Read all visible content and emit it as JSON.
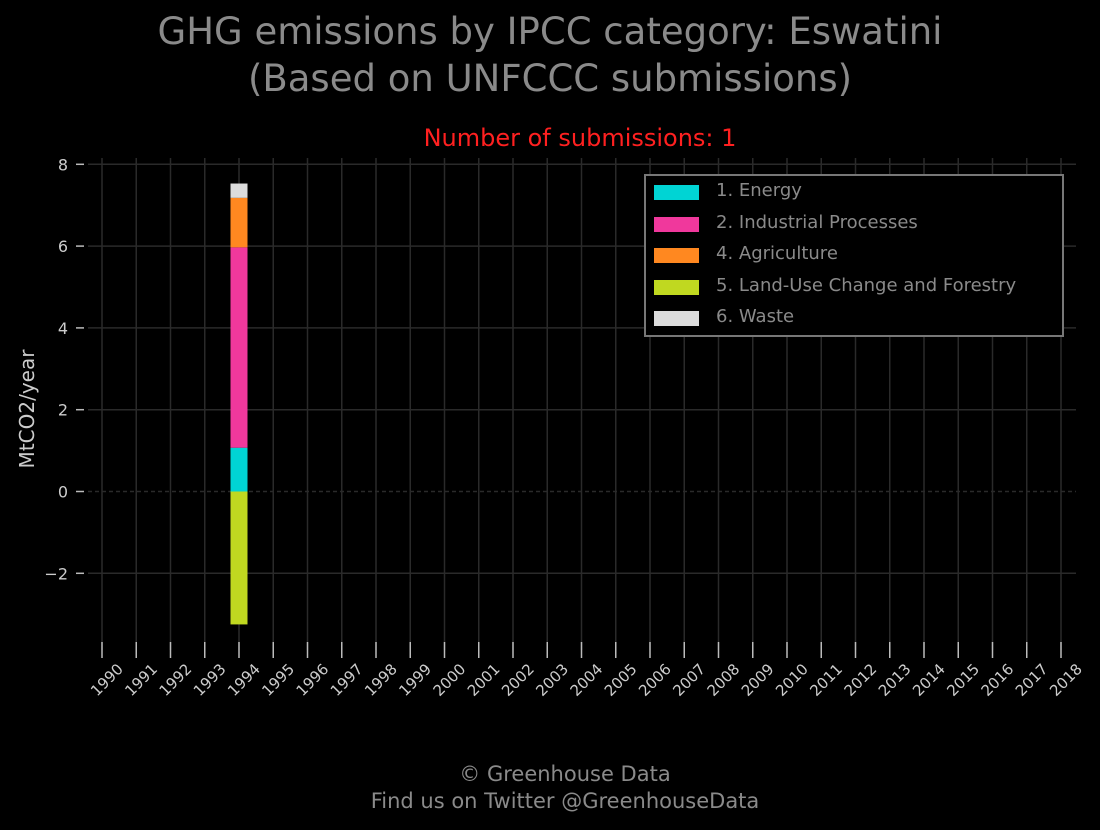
{
  "title_line1": "GHG emissions by IPCC category: Eswatini",
  "title_line2": "(Based on UNFCCC submissions)",
  "subtitle": "Number of submissions: 1",
  "footer_line1": "© Greenhouse Data",
  "footer_line2": "Find us on Twitter @GreenhouseData",
  "chart_data": {
    "type": "bar",
    "stacked": true,
    "ylabel": "MtCO2/year",
    "xlabel": "",
    "ylim": [
      -3.8,
      8.2
    ],
    "yticks": [
      8,
      6,
      4,
      2,
      0,
      -2
    ],
    "ytick_labels": [
      "8",
      "6",
      "4",
      "2",
      "0",
      "−2"
    ],
    "grid": true,
    "legend_position": "top-right",
    "categories": [
      "1990",
      "1991",
      "1992",
      "1993",
      "1994",
      "1995",
      "1996",
      "1997",
      "1998",
      "1999",
      "2000",
      "2001",
      "2002",
      "2003",
      "2004",
      "2005",
      "2006",
      "2007",
      "2008",
      "2009",
      "2010",
      "2011",
      "2012",
      "2013",
      "2014",
      "2015",
      "2016",
      "2017",
      "2018"
    ],
    "series": [
      {
        "name": "1. Energy",
        "color": "#00d4d4",
        "values": [
          null,
          null,
          null,
          null,
          1.07,
          null,
          null,
          null,
          null,
          null,
          null,
          null,
          null,
          null,
          null,
          null,
          null,
          null,
          null,
          null,
          null,
          null,
          null,
          null,
          null,
          null,
          null,
          null,
          null
        ]
      },
      {
        "name": "2. Industrial Processes",
        "color": "#f0389c",
        "values": [
          null,
          null,
          null,
          null,
          4.9,
          null,
          null,
          null,
          null,
          null,
          null,
          null,
          null,
          null,
          null,
          null,
          null,
          null,
          null,
          null,
          null,
          null,
          null,
          null,
          null,
          null,
          null,
          null,
          null
        ]
      },
      {
        "name": "4. Agriculture",
        "color": "#ff8820",
        "values": [
          null,
          null,
          null,
          null,
          1.21,
          null,
          null,
          null,
          null,
          null,
          null,
          null,
          null,
          null,
          null,
          null,
          null,
          null,
          null,
          null,
          null,
          null,
          null,
          null,
          null,
          null,
          null,
          null,
          null
        ]
      },
      {
        "name": "5. Land-Use Change and Forestry",
        "color": "#c0d820",
        "values": [
          null,
          null,
          null,
          null,
          -3.25,
          null,
          null,
          null,
          null,
          null,
          null,
          null,
          null,
          null,
          null,
          null,
          null,
          null,
          null,
          null,
          null,
          null,
          null,
          null,
          null,
          null,
          null,
          null,
          null
        ]
      },
      {
        "name": "6. Waste",
        "color": "#dcdcdc",
        "values": [
          null,
          null,
          null,
          null,
          0.35,
          null,
          null,
          null,
          null,
          null,
          null,
          null,
          null,
          null,
          null,
          null,
          null,
          null,
          null,
          null,
          null,
          null,
          null,
          null,
          null,
          null,
          null,
          null,
          null
        ]
      }
    ]
  }
}
